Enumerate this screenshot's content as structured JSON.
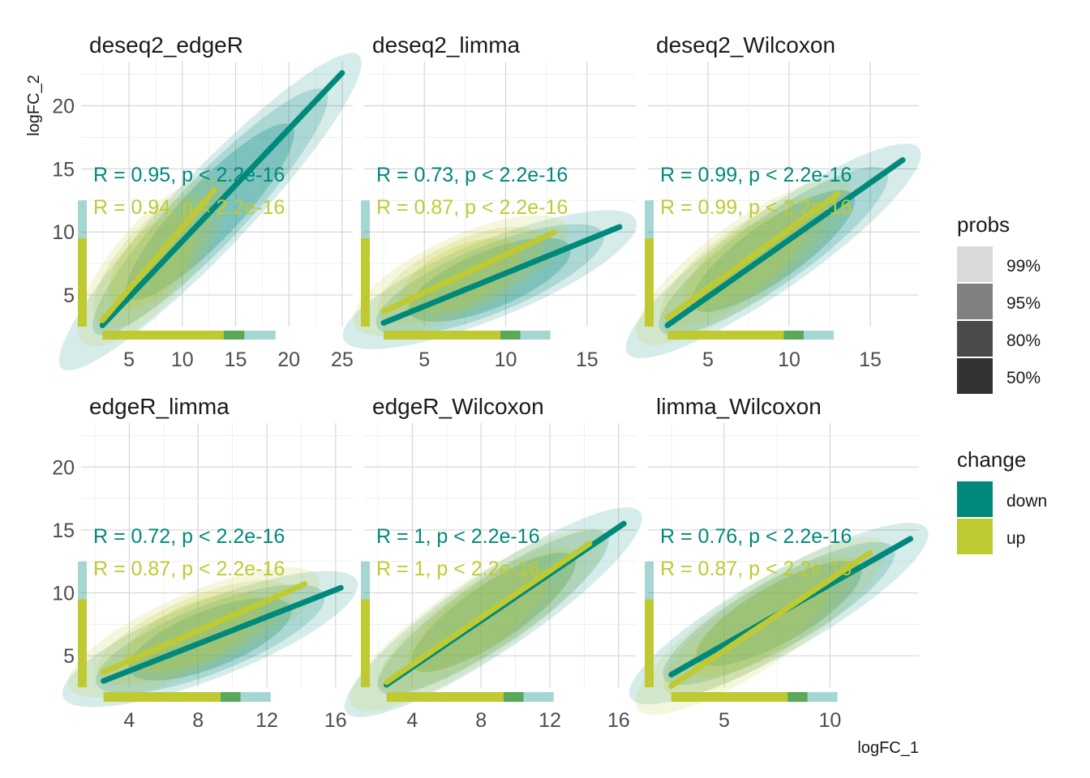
{
  "chart_data": {
    "type": "scatter",
    "xlabel": "logFC_1",
    "ylabel": "logFC_2",
    "ylim": [
      2.5,
      23.5
    ],
    "yticks": [
      5,
      10,
      15,
      20
    ],
    "colors": {
      "down": "#00897B",
      "up": "#BFCA33"
    },
    "legend_change": {
      "title": "change",
      "items": [
        "down",
        "up"
      ]
    },
    "legend_probs": {
      "title": "probs",
      "items": [
        "99%",
        "95%",
        "80%",
        "50%"
      ],
      "shades": [
        "#d9d9d9",
        "#808080",
        "#4a4a4a",
        "#333333"
      ]
    },
    "legend_placement": "right",
    "panels": [
      {
        "title": "deseq2_edgeR",
        "xlim": [
          0.5,
          26
        ],
        "xticks": [
          5,
          10,
          15,
          20,
          25
        ],
        "down": {
          "label": "R = 0.95, p < 2.2e-16",
          "line": [
            [
              2.5,
              2.6
            ],
            [
              25,
              22.6
            ]
          ]
        },
        "up": {
          "label": "R = 0.94, p < 2.2e-16",
          "line": [
            [
              2.5,
              3.0
            ],
            [
              13,
              13.3
            ]
          ]
        }
      },
      {
        "title": "deseq2_limma",
        "xlim": [
          1.3,
          18
        ],
        "xticks": [
          5,
          10,
          15
        ],
        "down": {
          "label": "R = 0.73, p < 2.2e-16",
          "line": [
            [
              2.5,
              2.8
            ],
            [
              17,
              10.4
            ]
          ]
        },
        "up": {
          "label": "R = 0.87, p < 2.2e-16",
          "line": [
            [
              2.5,
              3.7
            ],
            [
              13,
              10
            ]
          ]
        }
      },
      {
        "title": "deseq2_Wilcoxon",
        "xlim": [
          1.3,
          18
        ],
        "xticks": [
          5,
          10,
          15
        ],
        "down": {
          "label": "R = 0.99, p < 2.2e-16",
          "line": [
            [
              2.5,
              2.6
            ],
            [
              17,
              15.7
            ]
          ]
        },
        "up": {
          "label": "R = 0.99, p < 2.2e-16",
          "line": [
            [
              2.5,
              3.2
            ],
            [
              13,
              13
            ]
          ]
        }
      },
      {
        "title": "edgeR_limma",
        "xlim": [
          1.2,
          17
        ],
        "xticks": [
          4,
          8,
          12,
          16
        ],
        "down": {
          "label": "R = 0.72, p < 2.2e-16",
          "line": [
            [
              2.5,
              3.0
            ],
            [
              16.3,
              10.4
            ]
          ]
        },
        "up": {
          "label": "R = 0.87, p < 2.2e-16",
          "line": [
            [
              2.5,
              3.7
            ],
            [
              14.2,
              10.7
            ]
          ]
        }
      },
      {
        "title": "edgeR_Wilcoxon",
        "xlim": [
          1.2,
          17
        ],
        "xticks": [
          4,
          8,
          12,
          16
        ],
        "down": {
          "label": "R = 1, p < 2.2e-16",
          "line": [
            [
              2.5,
              2.7
            ],
            [
              16.3,
              15.5
            ]
          ]
        },
        "up": {
          "label": "R = 1, p < 2.2e-16",
          "line": [
            [
              2.5,
              2.9
            ],
            [
              14.3,
              13.9
            ]
          ]
        }
      },
      {
        "title": "limma_Wilcoxon",
        "xlim": [
          1.4,
          14.2
        ],
        "xticks": [
          5,
          10
        ],
        "down": {
          "label": "R = 0.76, p < 2.2e-16",
          "line": [
            [
              2.5,
              3.5
            ],
            [
              13.8,
              14.3
            ]
          ]
        },
        "up": {
          "label": "R = 0.87, p < 2.2e-16",
          "line": [
            [
              2.5,
              2.6
            ],
            [
              11.9,
              13.2
            ]
          ]
        }
      }
    ]
  }
}
